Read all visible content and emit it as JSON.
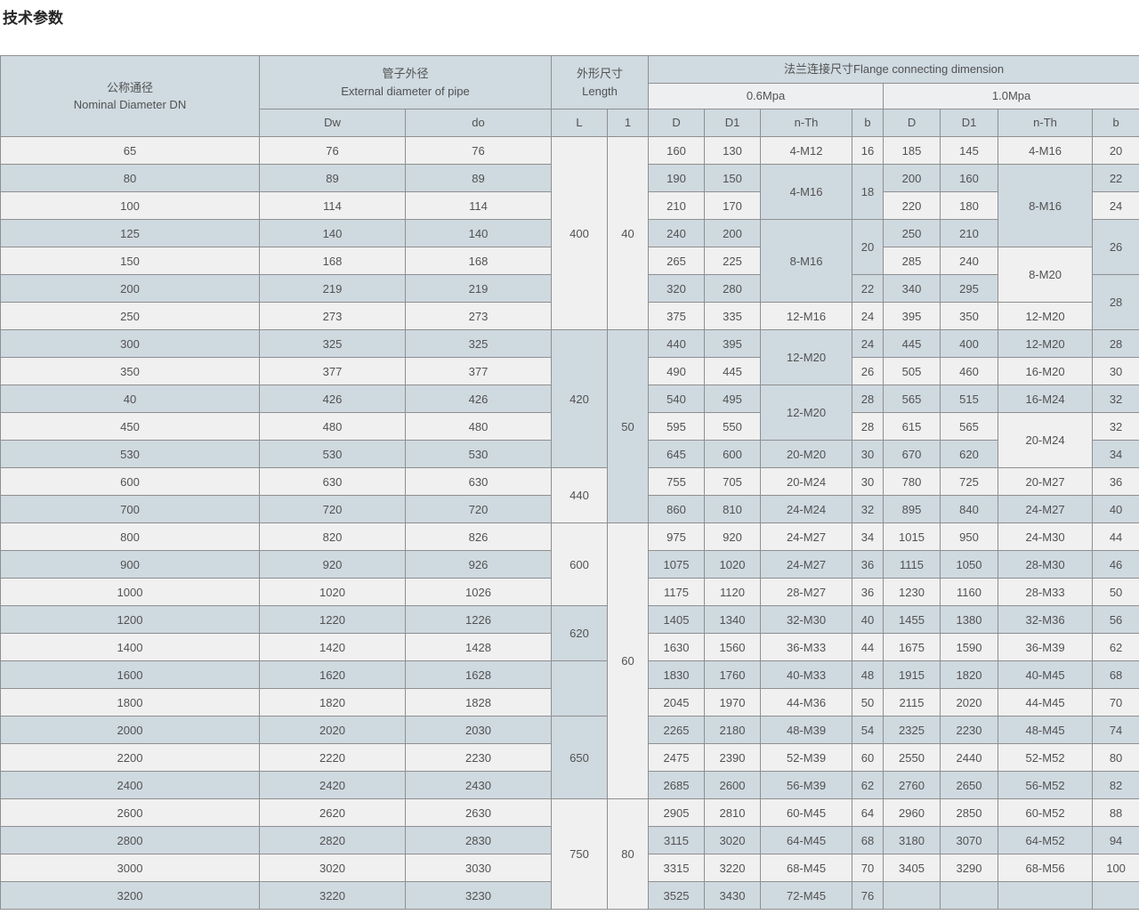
{
  "title": "技术参数",
  "colors": {
    "row_light": "#f0f0f0",
    "row_blue": "#cfd9e0",
    "header_blue": "#cfdae1",
    "header_light": "#edeff1",
    "border": "#8f8f8f"
  },
  "table": {
    "header": {
      "dn_zh": "公称通径",
      "dn_en": "Nominal Diameter DN",
      "pipe_zh": "管子外径",
      "pipe_en": "External diameter of pipe",
      "length_zh": "外形尺寸",
      "length_en": "Length",
      "flange": "法兰连接尺寸Flange connecting dimension",
      "pressure_06": "0.6Mpa",
      "pressure_10": "1.0Mpa",
      "sub": [
        "Dw",
        "do",
        "L",
        "1",
        "D",
        "D1",
        "n-Th",
        "b",
        "D",
        "D1",
        "n-Th",
        "b"
      ]
    },
    "rows": [
      [
        "65",
        "76",
        "76",
        {
          "v": "400",
          "rs": 7
        },
        {
          "v": "40",
          "rs": 7
        },
        "160",
        "130",
        "4-M12",
        "16",
        "185",
        "145",
        "4-M16",
        "20"
      ],
      [
        "80",
        "89",
        "89",
        "190",
        "150",
        {
          "v": "4-M16",
          "rs": 2
        },
        {
          "v": "18",
          "rs": 2
        },
        "200",
        "160",
        {
          "v": "8-M16",
          "rs": 3
        },
        "22"
      ],
      [
        "100",
        "114",
        "114",
        "210",
        "170",
        "220",
        "180",
        "24"
      ],
      [
        "125",
        "140",
        "140",
        "240",
        "200",
        {
          "v": "8-M16",
          "rs": 3
        },
        {
          "v": "20",
          "rs": 2
        },
        "250",
        "210",
        {
          "v": "26",
          "rs": 2
        }
      ],
      [
        "150",
        "168",
        "168",
        "265",
        "225",
        "285",
        "240",
        {
          "v": "8-M20",
          "rs": 2
        }
      ],
      [
        "200",
        "219",
        "219",
        "320",
        "280",
        "22",
        "340",
        "295",
        {
          "v": "28",
          "rs": 2
        }
      ],
      [
        "250",
        "273",
        "273",
        "375",
        "335",
        "12-M16",
        "24",
        "395",
        "350",
        "12-M20"
      ],
      [
        "300",
        "325",
        "325",
        {
          "v": "420",
          "rs": 5
        },
        {
          "v": "50",
          "rs": 7
        },
        "440",
        "395",
        {
          "v": "12-M20",
          "rs": 2
        },
        "24",
        "445",
        "400",
        "12-M20",
        "28"
      ],
      [
        "350",
        "377",
        "377",
        "490",
        "445",
        "26",
        "505",
        "460",
        "16-M20",
        "30"
      ],
      [
        "40",
        "426",
        "426",
        "540",
        "495",
        {
          "v": "12-M20",
          "rs": 2
        },
        "28",
        "565",
        "515",
        "16-M24",
        "32"
      ],
      [
        "450",
        "480",
        "480",
        "595",
        "550",
        "28",
        "615",
        "565",
        {
          "v": "20-M24",
          "rs": 2
        },
        "32"
      ],
      [
        "530",
        "530",
        "530",
        "645",
        "600",
        "20-M20",
        "30",
        "670",
        "620",
        "34"
      ],
      [
        "600",
        "630",
        "630",
        {
          "v": "440",
          "rs": 2
        },
        "755",
        "705",
        "20-M24",
        "30",
        "780",
        "725",
        "20-M27",
        "36"
      ],
      [
        "700",
        "720",
        "720",
        "860",
        "810",
        "24-M24",
        "32",
        "895",
        "840",
        "24-M27",
        "40"
      ],
      [
        "800",
        "820",
        "826",
        {
          "v": "600",
          "rs": 3
        },
        {
          "v": "60",
          "rs": 10
        },
        "975",
        "920",
        "24-M27",
        "34",
        "1015",
        "950",
        "24-M30",
        "44"
      ],
      [
        "900",
        "920",
        "926",
        "1075",
        "1020",
        "24-M27",
        "36",
        "1115",
        "1050",
        "28-M30",
        "46"
      ],
      [
        "1000",
        "1020",
        "1026",
        "1175",
        "1120",
        "28-M27",
        "36",
        "1230",
        "1160",
        "28-M33",
        "50"
      ],
      [
        "1200",
        "1220",
        "1226",
        {
          "v": "620",
          "rs": 2
        },
        "1405",
        "1340",
        "32-M30",
        "40",
        "1455",
        "1380",
        "32-M36",
        "56"
      ],
      [
        "1400",
        "1420",
        "1428",
        "1630",
        "1560",
        "36-M33",
        "44",
        "1675",
        "1590",
        "36-M39",
        "62"
      ],
      [
        "1600",
        "1620",
        "1628",
        {
          "v": "",
          "rs": 2
        },
        "1830",
        "1760",
        "40-M33",
        "48",
        "1915",
        "1820",
        "40-M45",
        "68"
      ],
      [
        "1800",
        "1820",
        "1828",
        "2045",
        "1970",
        "44-M36",
        "50",
        "2115",
        "2020",
        "44-M45",
        "70"
      ],
      [
        "2000",
        "2020",
        "2030",
        {
          "v": "650",
          "rs": 3
        },
        "2265",
        "2180",
        "48-M39",
        "54",
        "2325",
        "2230",
        "48-M45",
        "74"
      ],
      [
        "2200",
        "2220",
        "2230",
        "2475",
        "2390",
        "52-M39",
        "60",
        "2550",
        "2440",
        "52-M52",
        "80"
      ],
      [
        "2400",
        "2420",
        "2430",
        "2685",
        "2600",
        "56-M39",
        "62",
        "2760",
        "2650",
        "56-M52",
        "82"
      ],
      [
        "2600",
        "2620",
        "2630",
        {
          "v": "750",
          "rs": 4
        },
        {
          "v": "80",
          "rs": 4
        },
        "2905",
        "2810",
        "60-M45",
        "64",
        "2960",
        "2850",
        "60-M52",
        "88"
      ],
      [
        "2800",
        "2820",
        "2830",
        "3115",
        "3020",
        "64-M45",
        "68",
        "3180",
        "3070",
        "64-M52",
        "94"
      ],
      [
        "3000",
        "3020",
        "3030",
        "3315",
        "3220",
        "68-M45",
        "70",
        "3405",
        "3290",
        "68-M56",
        "100"
      ],
      [
        "3200",
        "3220",
        "3230",
        "3525",
        "3430",
        "72-M45",
        "76",
        "",
        "",
        "",
        ""
      ]
    ]
  }
}
